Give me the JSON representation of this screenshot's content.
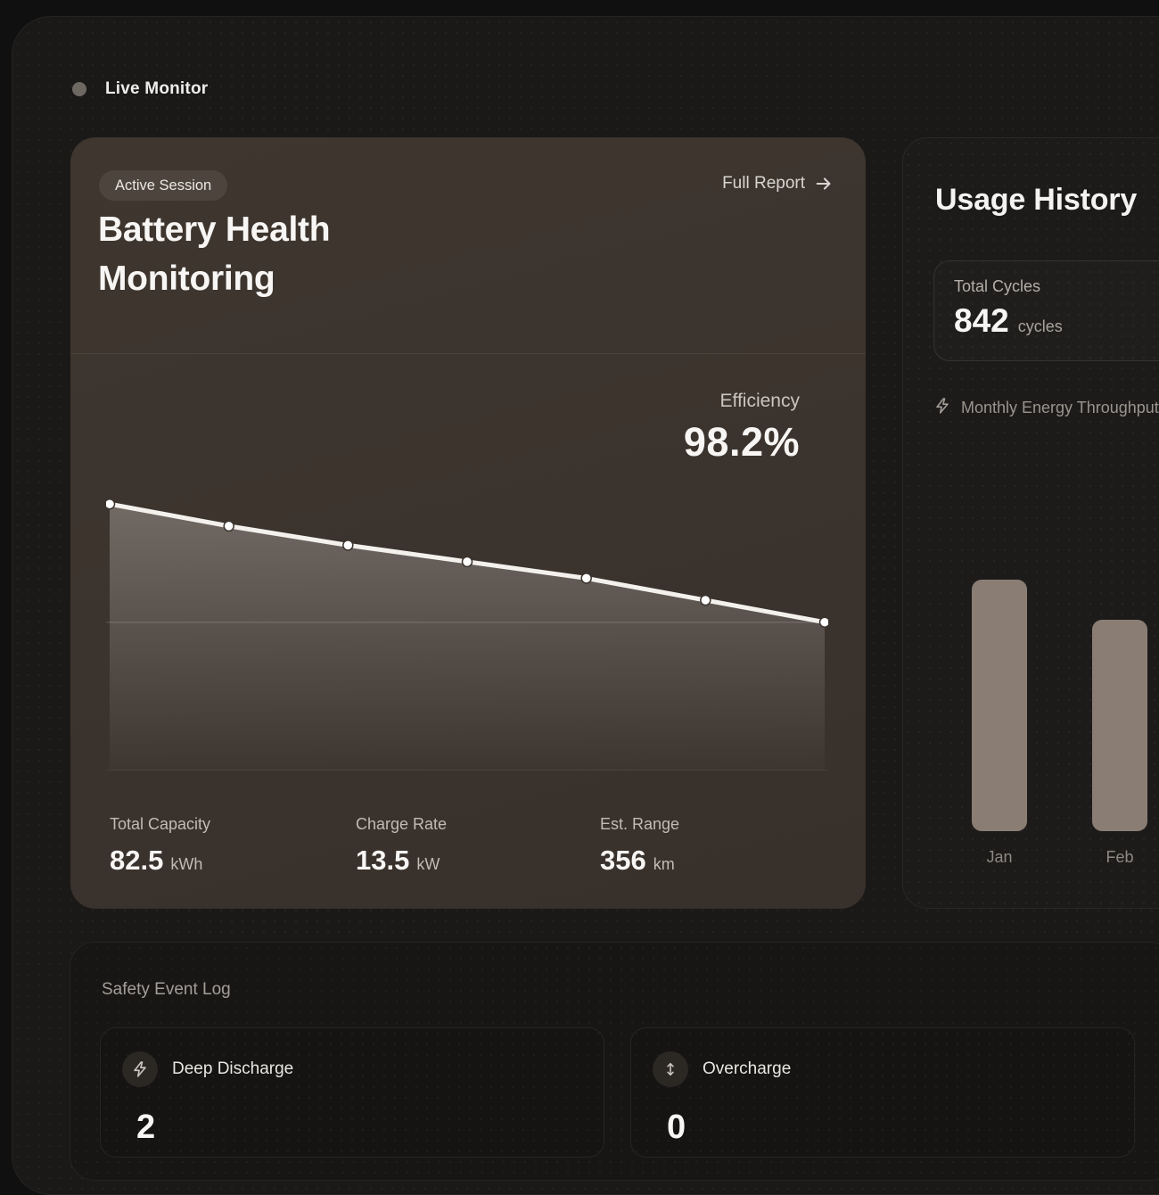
{
  "header": {
    "live_label": "Live Monitor",
    "live_indicator_icon": "status-dot"
  },
  "battery_card": {
    "badge": "Active Session",
    "full_report_label": "Full Report",
    "full_report_icon": "arrow-right-icon",
    "title_line1": "Battery Health",
    "title_line2": "Monitoring",
    "efficiency_label": "Efficiency",
    "efficiency_value": "98.2%",
    "stats": [
      {
        "label": "Total Capacity",
        "value": "82.5",
        "unit": "kWh"
      },
      {
        "label": "Charge Rate",
        "value": "13.5",
        "unit": "kW"
      },
      {
        "label": "Est. Range",
        "value": "356",
        "unit": "km"
      }
    ]
  },
  "usage_card": {
    "title": "Usage History",
    "total_cycles_label": "Total Cycles",
    "total_cycles_value": "842",
    "total_cycles_unit": "cycles",
    "throughput_icon": "bolt-icon",
    "throughput_label": "Monthly Energy Throughput"
  },
  "safety": {
    "title": "Safety Event Log",
    "events": [
      {
        "icon": "bolt-icon",
        "label": "Deep Discharge",
        "count": "2"
      },
      {
        "icon": "arrows-vertical-icon",
        "label": "Overcharge",
        "count": "0"
      }
    ]
  },
  "colors": {
    "main_card_brown": "#3c342e",
    "line_color": "#f4f1ed",
    "bar_color": "#8a7e74",
    "page_background": "#111010"
  },
  "chart_data": [
    {
      "type": "line",
      "title": "Battery health monitoring trend (sparkline, unlabeled axes)",
      "x": [
        1,
        2,
        3,
        4,
        5,
        6,
        7
      ],
      "values": [
        97,
        89,
        82,
        76,
        70,
        62,
        54
      ],
      "ylim": [
        0,
        100
      ],
      "xlabel": "",
      "ylabel": "",
      "grid": false,
      "markers": true,
      "area_fill": true,
      "reference_line_at_last_value": true,
      "annotation": {
        "label": "Efficiency",
        "value": "98.2%"
      }
    },
    {
      "type": "bar",
      "title": "Monthly Energy Throughput",
      "categories": [
        "Jan",
        "Feb"
      ],
      "values": [
        100,
        84
      ],
      "ylim": [
        0,
        100
      ],
      "xlabel": "",
      "ylabel": "",
      "grid": false,
      "legend": false
    }
  ]
}
